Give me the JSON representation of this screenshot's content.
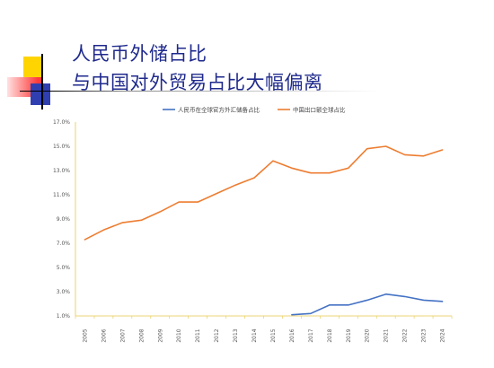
{
  "slide": {
    "title_line1": "人民币外储占比",
    "title_line2": "与中国对外贸易占比大幅偏离"
  },
  "colors": {
    "title": "#1f2a8c",
    "deco_yellow": "#ffd400",
    "deco_red": "#ff3b3b",
    "deco_blue": "#2f3fb0",
    "series_rmb": "#4472c4",
    "series_export": "#ed7d31",
    "axis": "#e6c84a"
  },
  "chart_data": {
    "type": "line",
    "title": "",
    "xlabel": "",
    "ylabel": "",
    "legend_position": "top",
    "grid": false,
    "x": [
      "2005",
      "2006",
      "2007",
      "2008",
      "2009",
      "2010",
      "2011",
      "2012",
      "2013",
      "2014",
      "2015",
      "2016",
      "2017",
      "2018",
      "2019",
      "2020",
      "2021",
      "2022",
      "2023",
      "2024"
    ],
    "ylim": [
      1.0,
      17.0
    ],
    "yticks": [
      "1.0%",
      "3.0%",
      "5.0%",
      "7.0%",
      "9.0%",
      "11.0%",
      "13.0%",
      "15.0%",
      "17.0%"
    ],
    "series": [
      {
        "name": "人民币在全球官方外汇储备占比",
        "color": "#4472c4",
        "values": [
          null,
          null,
          null,
          null,
          null,
          null,
          null,
          null,
          null,
          null,
          null,
          1.1,
          1.2,
          1.9,
          1.9,
          2.3,
          2.8,
          2.6,
          2.3,
          2.2
        ]
      },
      {
        "name": "中国出口额全球占比",
        "color": "#ed7d31",
        "values": [
          7.3,
          8.1,
          8.7,
          8.9,
          9.6,
          10.4,
          10.4,
          11.1,
          11.8,
          12.4,
          13.8,
          13.2,
          12.8,
          12.8,
          13.2,
          14.8,
          15.0,
          14.3,
          14.2,
          14.7
        ]
      }
    ]
  }
}
